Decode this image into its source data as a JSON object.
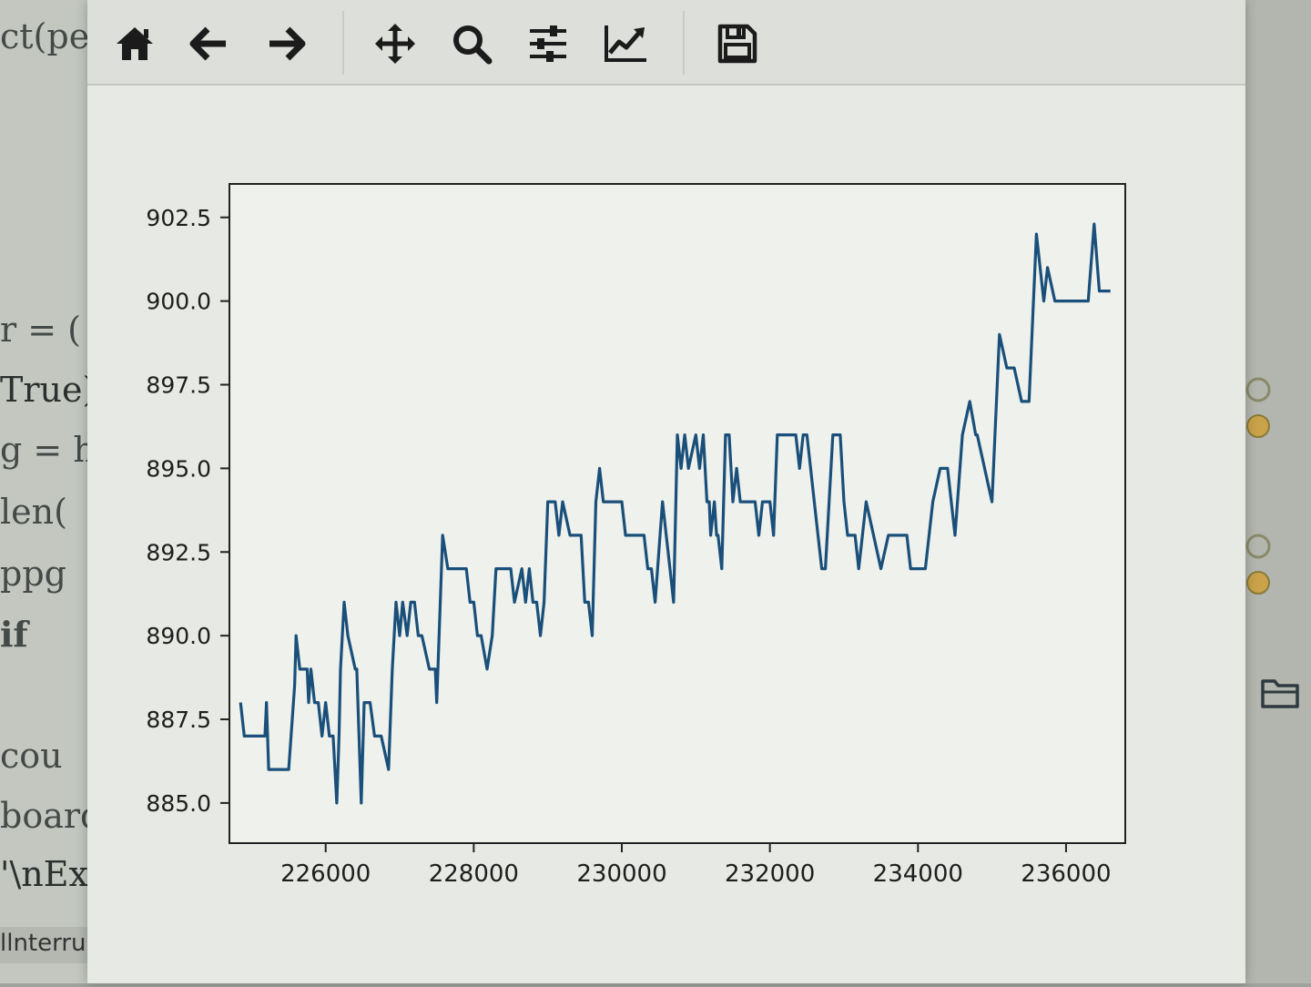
{
  "editor": {
    "lines": [
      "ct(pe",
      "r = (",
      "True)",
      "g = h",
      " len(",
      "  ppg",
      "  if",
      "   cou",
      "board",
      "'\\nEx"
    ],
    "status": "llnterru"
  },
  "window": {
    "toolbar": [
      {
        "name": "home-button",
        "icon": "home-icon"
      },
      {
        "name": "back-button",
        "icon": "arrow-left-icon"
      },
      {
        "name": "forward-button",
        "icon": "arrow-right-icon"
      },
      {
        "name": "pan-button",
        "icon": "move-icon"
      },
      {
        "name": "zoom-button",
        "icon": "magnifier-icon"
      },
      {
        "name": "configure-subplots-button",
        "icon": "sliders-icon"
      },
      {
        "name": "edit-axis-button",
        "icon": "line-chart-icon"
      },
      {
        "name": "save-button",
        "icon": "floppy-disk-icon"
      }
    ]
  },
  "chart_data": {
    "type": "line",
    "title": "",
    "xlabel": "",
    "ylabel": "",
    "xlim": [
      224700,
      236800
    ],
    "ylim": [
      883.8,
      903.5
    ],
    "x_ticks": [
      226000,
      228000,
      230000,
      232000,
      234000,
      236000
    ],
    "x_tick_labels": [
      "226000",
      "228000",
      "230000",
      "232000",
      "234000",
      "236000"
    ],
    "y_ticks": [
      885.0,
      887.5,
      890.0,
      892.5,
      895.0,
      897.5,
      900.0,
      902.5
    ],
    "y_tick_labels": [
      "885.0",
      "887.5",
      "890.0",
      "892.5",
      "895.0",
      "897.5",
      "900.0",
      "902.5"
    ],
    "grid": false,
    "line_color": "#1a4f7a",
    "series": [
      {
        "x": [
          224850,
          224900,
          225000,
          225180,
          225200,
          225230,
          225500,
          225580,
          225600,
          225650,
          225750,
          225770,
          225800,
          225850,
          225900,
          225950,
          226000,
          226050,
          226100,
          226150,
          226180,
          226200,
          226250,
          226300,
          226400,
          226420,
          226480,
          226520,
          226600,
          226660,
          226700,
          226750,
          226850,
          226900,
          226950,
          227000,
          227040,
          227100,
          227150,
          227200,
          227250,
          227300,
          227400,
          227480,
          227500,
          227580,
          227650,
          227700,
          227750,
          227800,
          227850,
          227900,
          227950,
          228000,
          228050,
          228100,
          228180,
          228250,
          228300,
          228500,
          228550,
          228650,
          228700,
          228750,
          228800,
          228850,
          228900,
          228950,
          229000,
          229100,
          229150,
          229200,
          229300,
          229400,
          229450,
          229500,
          229550,
          229600,
          229650,
          229700,
          229750,
          229800,
          229900,
          229950,
          230000,
          230050,
          230100,
          230200,
          230300,
          230350,
          230400,
          230450,
          230550,
          230600,
          230650,
          230700,
          230750,
          230800,
          230850,
          230900,
          231000,
          231050,
          231100,
          231150,
          231180,
          231200,
          231250,
          231280,
          231300,
          231350,
          231400,
          231450,
          231500,
          231550,
          231600,
          231650,
          231700,
          231750,
          231800,
          231850,
          231900,
          231950,
          232000,
          232050,
          232100,
          232150,
          232200,
          232250,
          232300,
          232350,
          232400,
          232450,
          232500,
          232550,
          232600,
          232650,
          232700,
          232750,
          232800,
          232850,
          232900,
          232950,
          233000,
          233050,
          233100,
          233150,
          233200,
          233250,
          233300,
          233400,
          233500,
          233600,
          233700,
          233800,
          233850,
          233900,
          234000,
          234100,
          234200,
          234300,
          234400,
          234500,
          234600,
          234700,
          234780,
          234800,
          234900,
          235000,
          235100,
          235200,
          235300,
          235400,
          235500,
          235600,
          235700,
          235750,
          235850,
          235950,
          236050,
          236150,
          236250,
          236300,
          236380,
          236450,
          236550,
          236600
        ],
        "y": [
          888.0,
          887.0,
          887.0,
          887.0,
          888.0,
          886.0,
          886.0,
          888.5,
          890.0,
          889.0,
          889.0,
          888.0,
          889.0,
          888.0,
          888.0,
          887.0,
          888.0,
          887.0,
          887.0,
          885.0,
          887.0,
          889.0,
          891.0,
          890.0,
          889.0,
          889.0,
          885.0,
          888.0,
          888.0,
          887.0,
          887.0,
          887.0,
          886.0,
          889.0,
          891.0,
          890.0,
          891.0,
          890.0,
          891.0,
          891.0,
          890.0,
          890.0,
          889.0,
          889.0,
          888.0,
          893.0,
          892.0,
          892.0,
          892.0,
          892.0,
          892.0,
          892.0,
          891.0,
          891.0,
          890.0,
          890.0,
          889.0,
          890.0,
          892.0,
          892.0,
          891.0,
          892.0,
          891.0,
          892.0,
          891.0,
          891.0,
          890.0,
          891.0,
          894.0,
          894.0,
          893.0,
          894.0,
          893.0,
          893.0,
          893.0,
          891.0,
          891.0,
          890.0,
          894.0,
          895.0,
          894.0,
          894.0,
          894.0,
          894.0,
          894.0,
          893.0,
          893.0,
          893.0,
          893.0,
          892.0,
          892.0,
          891.0,
          894.0,
          893.0,
          892.0,
          891.0,
          896.0,
          895.0,
          896.0,
          895.0,
          896.0,
          895.0,
          896.0,
          894.0,
          894.0,
          893.0,
          894.0,
          893.0,
          893.0,
          892.0,
          896.0,
          896.0,
          894.0,
          895.0,
          894.0,
          894.0,
          894.0,
          894.0,
          894.0,
          893.0,
          894.0,
          894.0,
          894.0,
          893.0,
          896.0,
          896.0,
          896.0,
          896.0,
          896.0,
          896.0,
          895.0,
          896.0,
          896.0,
          895.0,
          894.0,
          893.0,
          892.0,
          892.0,
          894.0,
          896.0,
          896.0,
          896.0,
          894.0,
          893.0,
          893.0,
          893.0,
          892.0,
          893.0,
          894.0,
          893.0,
          892.0,
          893.0,
          893.0,
          893.0,
          893.0,
          892.0,
          892.0,
          892.0,
          894.0,
          895.0,
          895.0,
          893.0,
          896.0,
          897.0,
          896.0,
          896.0,
          895.0,
          894.0,
          899.0,
          898.0,
          898.0,
          897.0,
          897.0,
          902.0,
          900.0,
          901.0,
          900.0,
          900.0,
          900.0,
          900.0,
          900.0,
          900.0,
          902.3,
          900.3,
          900.3,
          900.3
        ]
      }
    ]
  }
}
